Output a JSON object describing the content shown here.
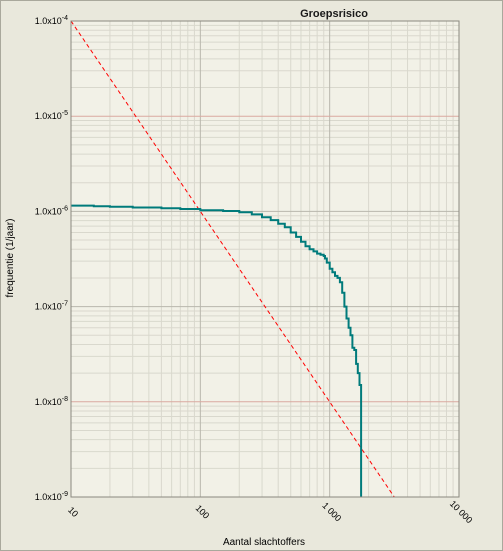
{
  "chart_data": {
    "type": "line",
    "title": "Groepsrisico",
    "xlabel": "Aantal slachtoffers",
    "ylabel": "frequentie (1/jaar)",
    "x_scale": "log",
    "y_scale": "log",
    "xlim": [
      10,
      10000
    ],
    "ylim": [
      1e-09,
      0.0001
    ],
    "x_ticks": [
      {
        "value": 10,
        "label": "10"
      },
      {
        "value": 100,
        "label": "100"
      },
      {
        "value": 1000,
        "label": "1 000"
      },
      {
        "value": 10000,
        "label": "10 000"
      }
    ],
    "y_ticks": [
      {
        "value": 0.0001,
        "base": "1.0x10",
        "exp": "-4"
      },
      {
        "value": 1e-05,
        "base": "1.0x10",
        "exp": "-5"
      },
      {
        "value": 1e-06,
        "base": "1.0x10",
        "exp": "-6"
      },
      {
        "value": 1e-07,
        "base": "1.0x10",
        "exp": "-7"
      },
      {
        "value": 1e-08,
        "base": "1.0x10",
        "exp": "-8"
      },
      {
        "value": 1e-09,
        "base": "1.0x10",
        "exp": "-9"
      }
    ],
    "grid": true,
    "colors": {
      "background": "#e9e8dc",
      "plot_background": "#f2f1e7",
      "minor_grid": "#d9d8cd",
      "major_grid": "#b8b7ad",
      "reference_grid": "#d9a9a0",
      "oriëntatiewaarde": "#ff0000",
      "groepsrisico": "#007b7b"
    },
    "series": [
      {
        "style": "dashed",
        "color": "#ff0000",
        "x": [
          10,
          3162
        ],
        "y": [
          0.0001,
          1e-09
        ]
      },
      {
        "style": "step",
        "color": "#007b7b",
        "x": [
          10,
          15,
          20,
          30,
          50,
          70,
          100,
          150,
          200,
          250,
          300,
          350,
          400,
          450,
          500,
          550,
          600,
          650,
          700,
          750,
          800,
          850,
          900,
          920,
          950,
          1000,
          1050,
          1100,
          1150,
          1200,
          1250,
          1300,
          1350,
          1400,
          1450,
          1500,
          1550,
          1600,
          1650,
          1700,
          1750,
          1750
        ],
        "y": [
          1.15e-06,
          1.13e-06,
          1.12e-06,
          1.1e-06,
          1.08e-06,
          1.06e-06,
          1.03e-06,
          1.01e-06,
          9.8e-07,
          9.3e-07,
          8.7e-07,
          8.1e-07,
          7.4e-07,
          6.8e-07,
          6e-07,
          5.4e-07,
          4.8e-07,
          4.3e-07,
          4e-07,
          3.8e-07,
          3.6e-07,
          3.5e-07,
          3.4e-07,
          3.2e-07,
          2.9e-07,
          2.5e-07,
          2.3e-07,
          2.1e-07,
          2e-07,
          1.8e-07,
          1.4e-07,
          1e-07,
          7.5e-08,
          6e-08,
          5e-08,
          3.7e-08,
          3.5e-08,
          2.5e-08,
          2e-08,
          1.5e-08,
          1.5e-08,
          1e-09
        ]
      }
    ]
  }
}
